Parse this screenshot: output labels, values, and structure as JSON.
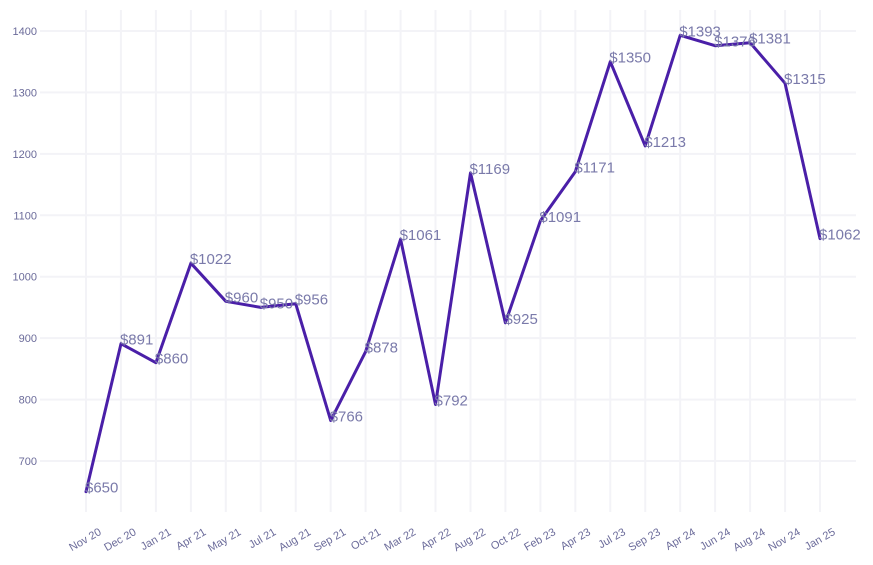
{
  "chart_data": {
    "type": "line",
    "title": "",
    "xlabel": "",
    "ylabel": "",
    "ylim": [
      620,
      1420
    ],
    "yticks": [
      700,
      800,
      900,
      1000,
      1100,
      1200,
      1300,
      1400
    ],
    "grid": true,
    "legend": "none",
    "line_color": "#4a1fa8",
    "label_prefix": "$",
    "categories": [
      "Nov 20",
      "Dec 20",
      "Jan 21",
      "Apr 21",
      "May 21",
      "Jul 21",
      "Aug 21",
      "Sep 21",
      "Oct 21",
      "Mar 22",
      "Apr 22",
      "Aug 22",
      "Oct 22",
      "Feb 23",
      "Apr 23",
      "Jul 23",
      "Sep 23",
      "Apr 24",
      "Jun 24",
      "Aug 24",
      "Nov 24",
      "Jan 25"
    ],
    "values": [
      650,
      891,
      860,
      1022,
      960,
      950,
      956,
      766,
      878,
      1061,
      792,
      1169,
      925,
      1091,
      1171,
      1350,
      1213,
      1393,
      1376,
      1381,
      1315,
      1062
    ]
  }
}
